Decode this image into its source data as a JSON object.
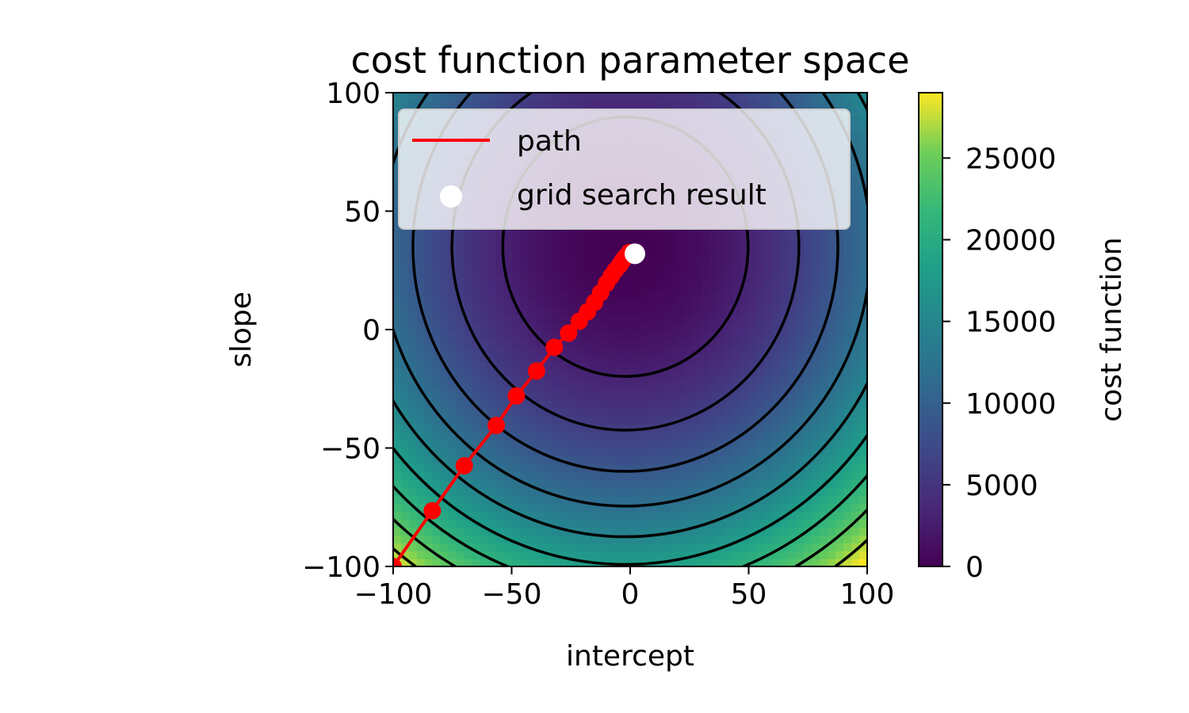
{
  "chart_data": {
    "type": "contour",
    "title": "cost function parameter space",
    "xlabel": "intercept",
    "ylabel": "slope",
    "xlim": [
      -100,
      100
    ],
    "ylim": [
      -100,
      100
    ],
    "x_ticks": [
      -100,
      -50,
      0,
      50,
      100
    ],
    "y_ticks": [
      -100,
      -50,
      0,
      50,
      100
    ],
    "x_tick_labels": [
      "−100",
      "−50",
      "0",
      "50",
      "100"
    ],
    "y_tick_labels": [
      "−100",
      "−50",
      "0",
      "50",
      "100"
    ],
    "grid": false,
    "colormap": "viridis",
    "colorbar": {
      "label": "cost function",
      "range": [
        0,
        29000
      ],
      "ticks": [
        0,
        5000,
        10000,
        15000,
        20000,
        25000
      ],
      "tick_labels": [
        "0",
        "5000",
        "10000",
        "15000",
        "20000",
        "25000"
      ]
    },
    "surface": {
      "center": [
        -2,
        35
      ],
      "ax": 1.12,
      "ay": 1.0
    },
    "contour_levels": [
      3000,
      6000,
      9000,
      12000,
      15000,
      18000,
      21000,
      24000,
      27000
    ],
    "contour_color": "#000000",
    "legend": {
      "placement": "upper-left",
      "entries": [
        {
          "label": "path",
          "kind": "line",
          "color": "#ff0000"
        },
        {
          "label": "grid search result",
          "kind": "marker",
          "color": "#ffffff"
        }
      ]
    },
    "series": [
      {
        "name": "path",
        "color": "#ff0000",
        "x": [
          -100,
          -83.5,
          -70,
          -56.5,
          -48,
          -39.5,
          -32,
          -26,
          -21.5,
          -18,
          -15,
          -12.5,
          -10,
          -8,
          -6.3,
          -4.6,
          -3.3,
          -2.2,
          -1.2,
          -0.4
        ],
        "y": [
          -100,
          -76.5,
          -57.5,
          -40.5,
          -28,
          -17.5,
          -7.5,
          -1.5,
          3.5,
          7.5,
          11.5,
          15.5,
          19.5,
          22.5,
          25,
          27,
          29,
          30.5,
          31.5,
          32.5
        ]
      },
      {
        "name": "grid search result",
        "color": "#ffffff",
        "x": [
          2
        ],
        "y": [
          32
        ]
      }
    ]
  }
}
